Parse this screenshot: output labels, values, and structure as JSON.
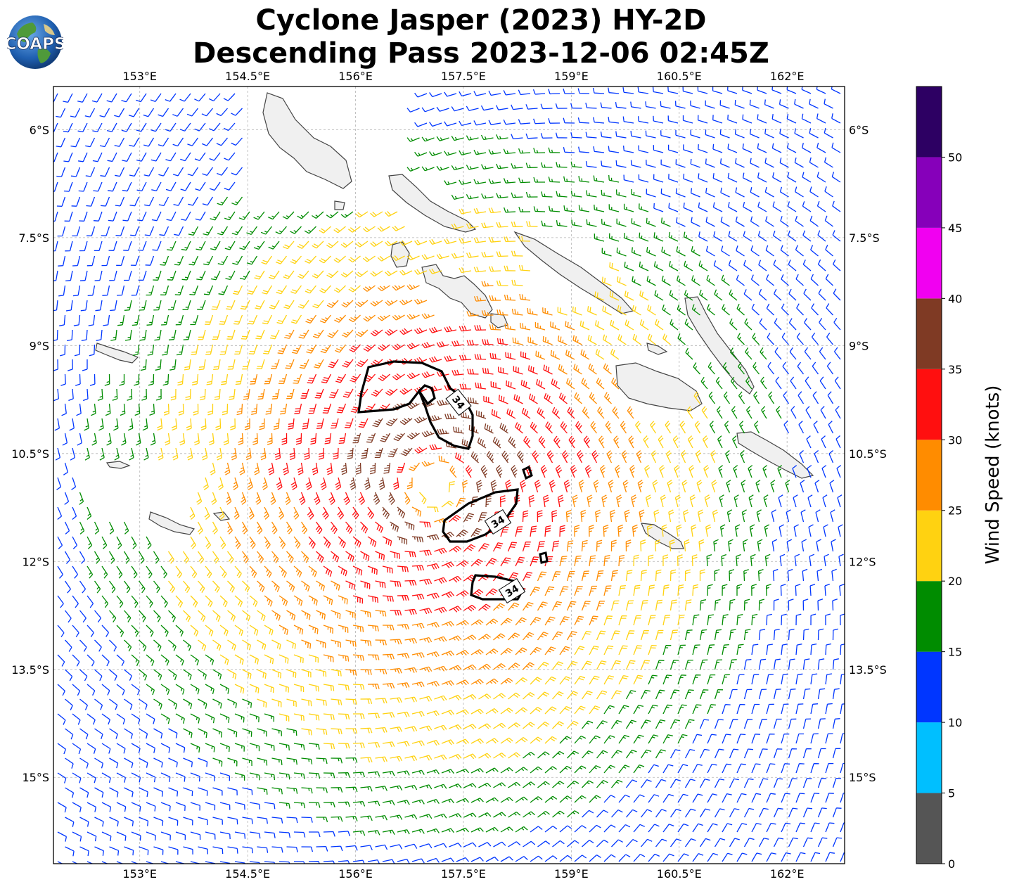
{
  "title": {
    "line1": "Cyclone Jasper (2023) HY-2D",
    "line2": "Descending Pass 2023-12-06 02:45Z"
  },
  "logo": {
    "text": "COAPS"
  },
  "map": {
    "lon_ticks": [
      "153°E",
      "154.5°E",
      "156°E",
      "157.5°E",
      "159°E",
      "160.5°E",
      "162°E"
    ],
    "lat_ticks": [
      "6°S",
      "7.5°S",
      "9°S",
      "10.5°S",
      "12°S",
      "13.5°S",
      "15°S"
    ],
    "lon_range": [
      151.8,
      162.8
    ],
    "lat_range": [
      -16.2,
      -5.4
    ],
    "gridlines": true,
    "storm_center": {
      "lon": 157.1,
      "lat": -10.95
    },
    "contour_level_label": "34"
  },
  "colorbar": {
    "label": "Wind Speed (knots)",
    "range": [
      0,
      55
    ],
    "tick_labels": [
      "0",
      "5",
      "10",
      "15",
      "20",
      "25",
      "30",
      "35",
      "40",
      "45",
      "50"
    ],
    "bins": [
      {
        "from": 0,
        "to": 5,
        "color": "#555555"
      },
      {
        "from": 5,
        "to": 10,
        "color": "#00bfff"
      },
      {
        "from": 10,
        "to": 15,
        "color": "#0036ff"
      },
      {
        "from": 15,
        "to": 20,
        "color": "#008c00"
      },
      {
        "from": 20,
        "to": 25,
        "color": "#ffd211"
      },
      {
        "from": 25,
        "to": 30,
        "color": "#ff8c00"
      },
      {
        "from": 30,
        "to": 35,
        "color": "#ff0f0f"
      },
      {
        "from": 35,
        "to": 40,
        "color": "#7f3a24"
      },
      {
        "from": 40,
        "to": 45,
        "color": "#f100f1"
      },
      {
        "from": 45,
        "to": 50,
        "color": "#8600ba"
      },
      {
        "from": 50,
        "to": 55,
        "color": "#2d0063"
      }
    ]
  }
}
